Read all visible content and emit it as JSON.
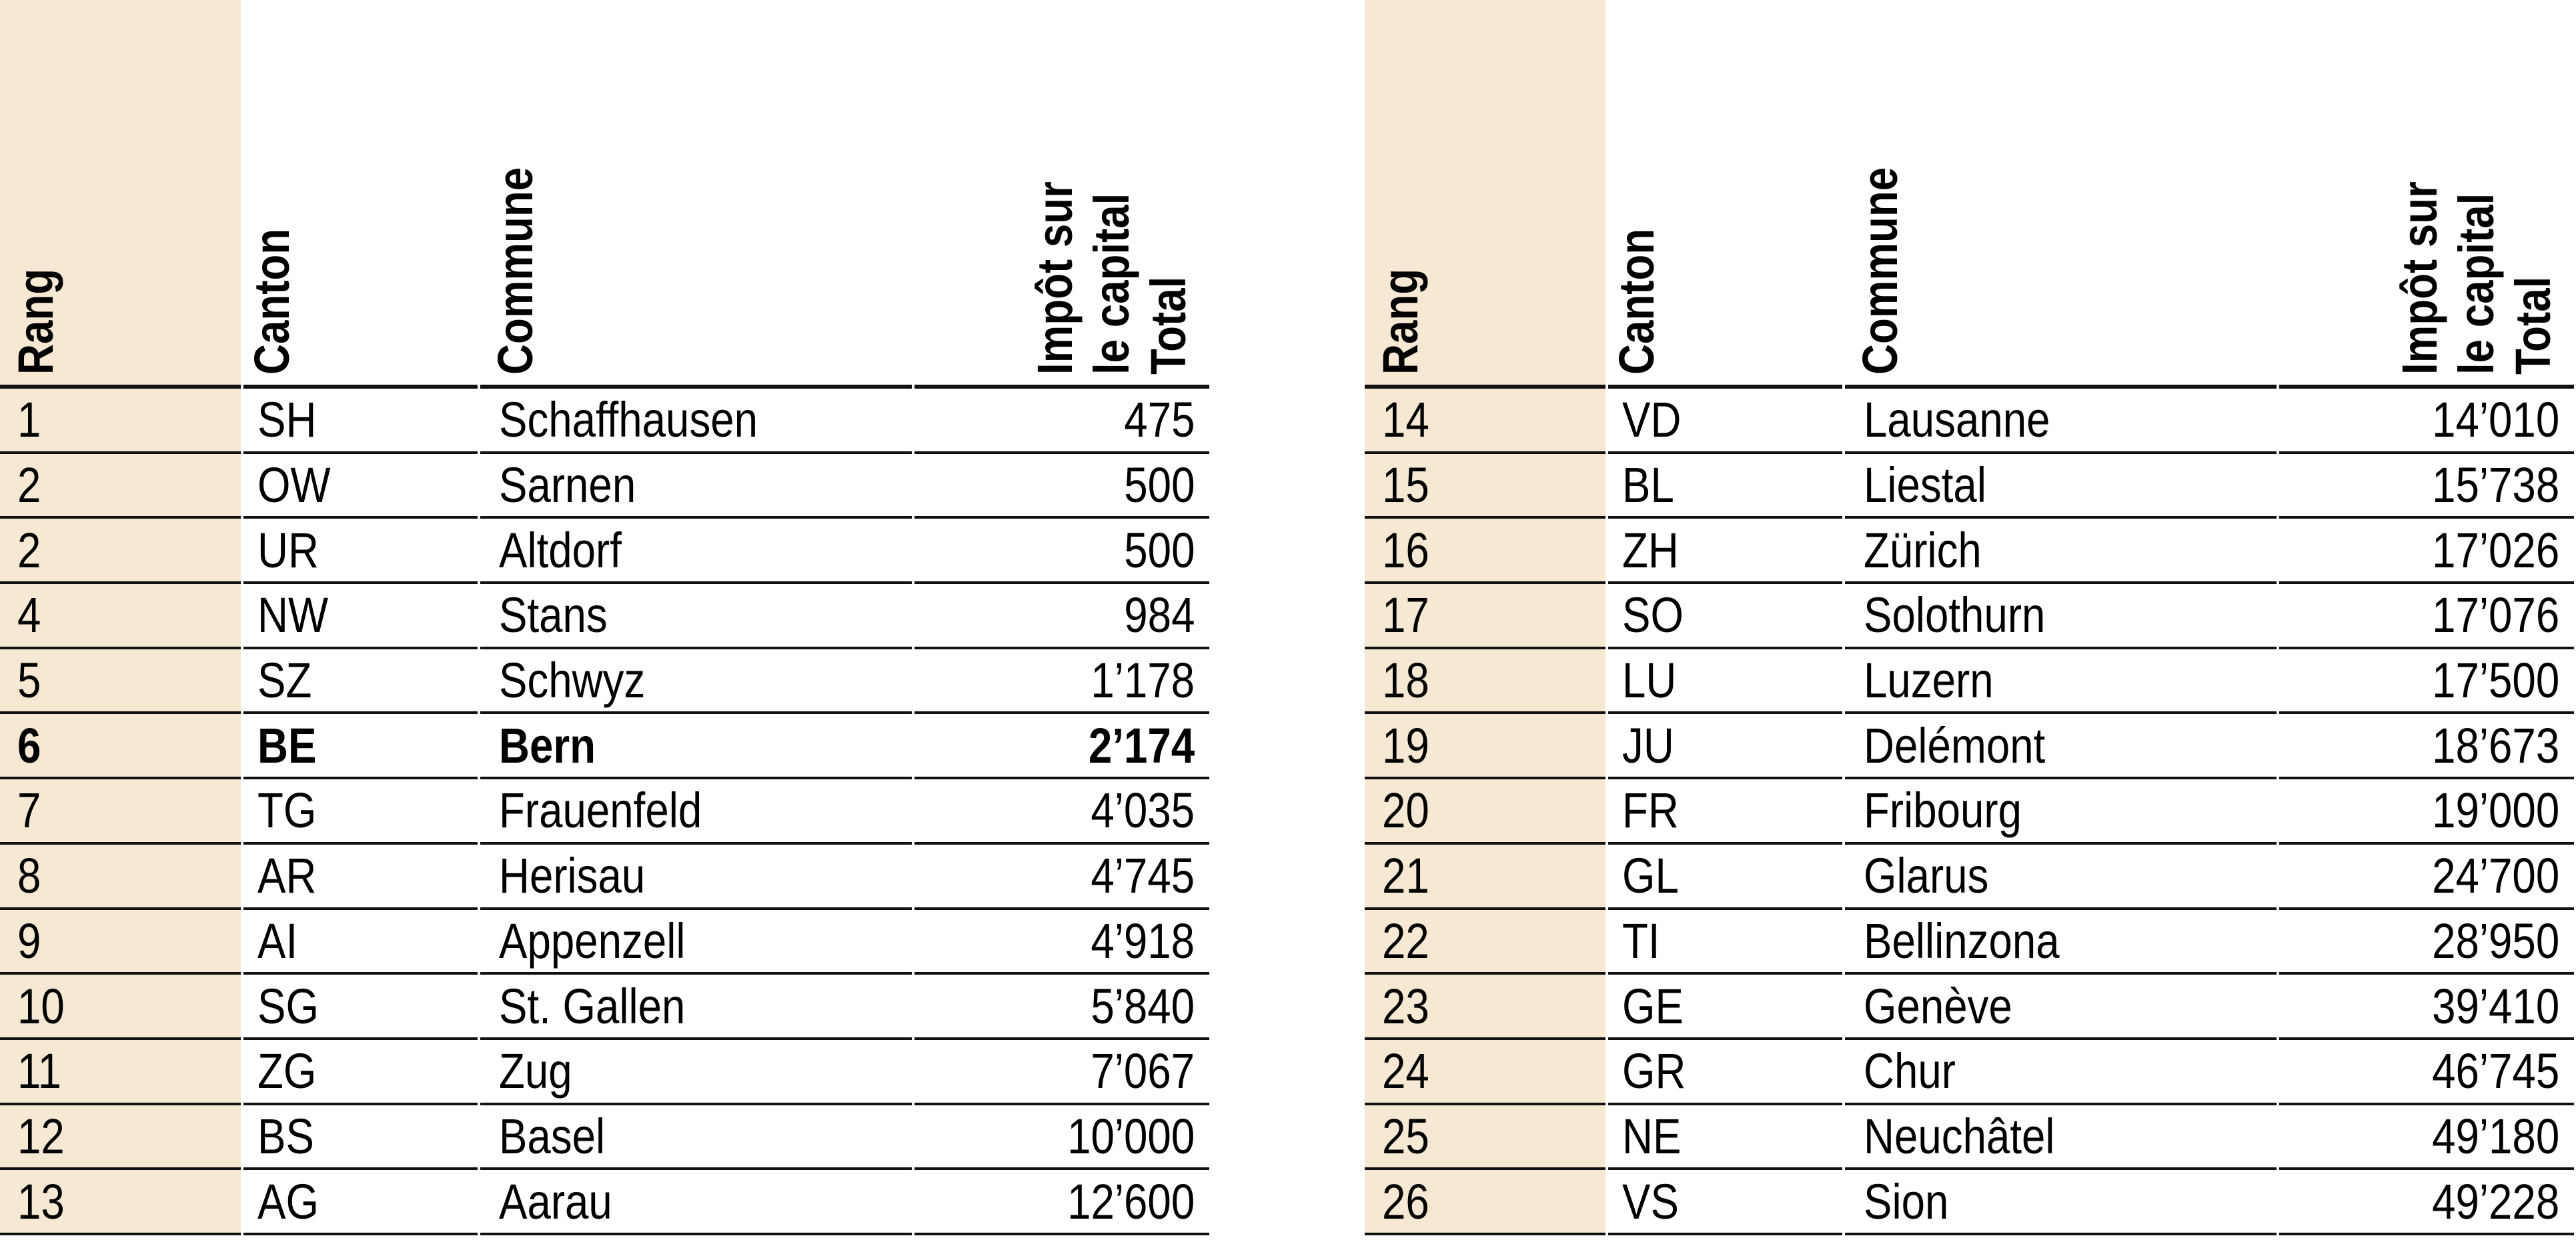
{
  "colors": {
    "rank_column_background": "#f6e8d2",
    "rule_color": "#111111",
    "text_color": "#000000",
    "page_background": "#ffffff",
    "highlight_row_style": "bold"
  },
  "headers": {
    "rang": "Rang",
    "canton": "Canton",
    "commune": "Commune",
    "tax": "Impôt sur\nle capital\nTotal"
  },
  "tables": [
    {
      "rows": [
        {
          "rang": "1",
          "canton": "SH",
          "commune": "Schaffhausen",
          "total": "475",
          "bold": false
        },
        {
          "rang": "2",
          "canton": "OW",
          "commune": "Sarnen",
          "total": "500",
          "bold": false
        },
        {
          "rang": "2",
          "canton": "UR",
          "commune": "Altdorf",
          "total": "500",
          "bold": false
        },
        {
          "rang": "4",
          "canton": "NW",
          "commune": "Stans",
          "total": "984",
          "bold": false
        },
        {
          "rang": "5",
          "canton": "SZ",
          "commune": "Schwyz",
          "total": "1’178",
          "bold": false
        },
        {
          "rang": "6",
          "canton": "BE",
          "commune": "Bern",
          "total": "2’174",
          "bold": true
        },
        {
          "rang": "7",
          "canton": "TG",
          "commune": "Frauenfeld",
          "total": "4’035",
          "bold": false
        },
        {
          "rang": "8",
          "canton": "AR",
          "commune": "Herisau",
          "total": "4’745",
          "bold": false
        },
        {
          "rang": "9",
          "canton": "AI",
          "commune": "Appenzell",
          "total": "4’918",
          "bold": false
        },
        {
          "rang": "10",
          "canton": "SG",
          "commune": "St. Gallen",
          "total": "5’840",
          "bold": false
        },
        {
          "rang": "11",
          "canton": "ZG",
          "commune": "Zug",
          "total": "7’067",
          "bold": false
        },
        {
          "rang": "12",
          "canton": "BS",
          "commune": "Basel",
          "total": "10’000",
          "bold": false
        },
        {
          "rang": "13",
          "canton": "AG",
          "commune": "Aarau",
          "total": "12’600",
          "bold": false
        }
      ]
    },
    {
      "rows": [
        {
          "rang": "14",
          "canton": "VD",
          "commune": "Lausanne",
          "total": "14’010",
          "bold": false
        },
        {
          "rang": "15",
          "canton": "BL",
          "commune": "Liestal",
          "total": "15’738",
          "bold": false
        },
        {
          "rang": "16",
          "canton": "ZH",
          "commune": "Zürich",
          "total": "17’026",
          "bold": false
        },
        {
          "rang": "17",
          "canton": "SO",
          "commune": "Solothurn",
          "total": "17’076",
          "bold": false
        },
        {
          "rang": "18",
          "canton": "LU",
          "commune": "Luzern",
          "total": "17’500",
          "bold": false
        },
        {
          "rang": "19",
          "canton": "JU",
          "commune": "Delémont",
          "total": "18’673",
          "bold": false
        },
        {
          "rang": "20",
          "canton": "FR",
          "commune": "Fribourg",
          "total": "19’000",
          "bold": false
        },
        {
          "rang": "21",
          "canton": "GL",
          "commune": "Glarus",
          "total": "24’700",
          "bold": false
        },
        {
          "rang": "22",
          "canton": "TI",
          "commune": "Bellinzona",
          "total": "28’950",
          "bold": false
        },
        {
          "rang": "23",
          "canton": "GE",
          "commune": "Genève",
          "total": "39’410",
          "bold": false
        },
        {
          "rang": "24",
          "canton": "GR",
          "commune": "Chur",
          "total": "46’745",
          "bold": false
        },
        {
          "rang": "25",
          "canton": "NE",
          "commune": "Neuchâtel",
          "total": "49’180",
          "bold": false
        },
        {
          "rang": "26",
          "canton": "VS",
          "commune": "Sion",
          "total": "49’228",
          "bold": false
        }
      ]
    }
  ]
}
